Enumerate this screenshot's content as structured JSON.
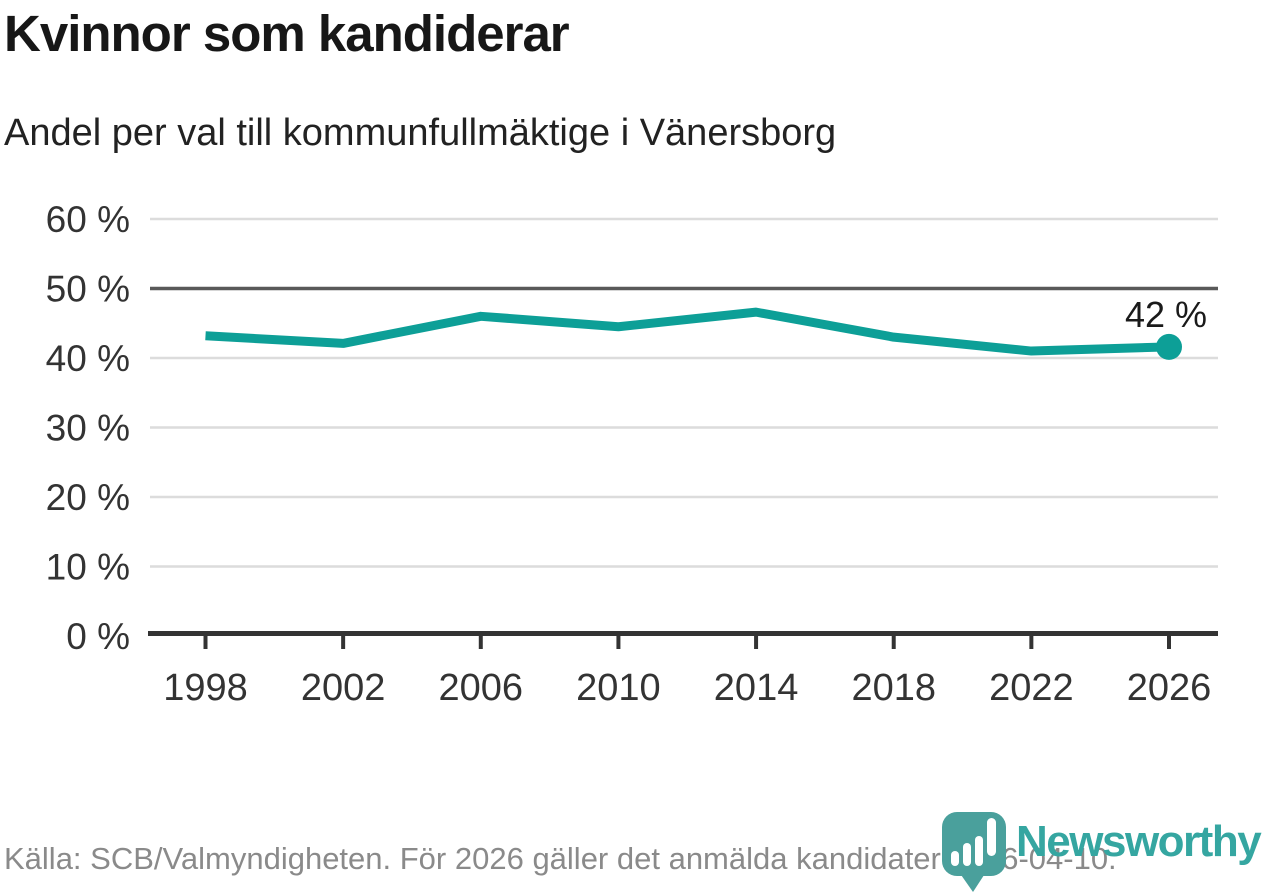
{
  "page": {
    "title": "Kvinnor som kandiderar",
    "subtitle": "Andel per val till kommunfullmäktige i Vänersborg",
    "footer_source": "Källa: SCB/Valmyndigheten. För 2026 gäller det anmälda kandidater 2026-04-10.",
    "logo_wordmark": "Newsworthy"
  },
  "colors": {
    "line": "#0d9f97",
    "grid": "#dcdcdc",
    "highlight_grid": "#595959",
    "axis": "#333333",
    "tick_label": "#333333",
    "title": "#171717",
    "footer": "#8a8a8a",
    "logo_icon": "#4aa09c",
    "logo_text": "#35a6a1"
  },
  "chart_data": {
    "type": "line",
    "title": "Kvinnor som kandiderar",
    "subtitle": "Andel per val till kommunfullmäktige i Vänersborg",
    "categories": [
      "1998",
      "2002",
      "2006",
      "2010",
      "2014",
      "2018",
      "2022",
      "2026"
    ],
    "values": [
      43.2,
      42.1,
      46.0,
      44.5,
      46.6,
      43.0,
      41.0,
      41.6
    ],
    "unit": "%",
    "xlabel": "",
    "ylabel": "",
    "ylim": [
      0,
      60
    ],
    "yticks": [
      0,
      10,
      20,
      30,
      40,
      50,
      60
    ],
    "ytick_suffix": " %",
    "highlight_gridline": 50,
    "end_point_label": "42 %",
    "grid": true,
    "legend_position": "none"
  }
}
